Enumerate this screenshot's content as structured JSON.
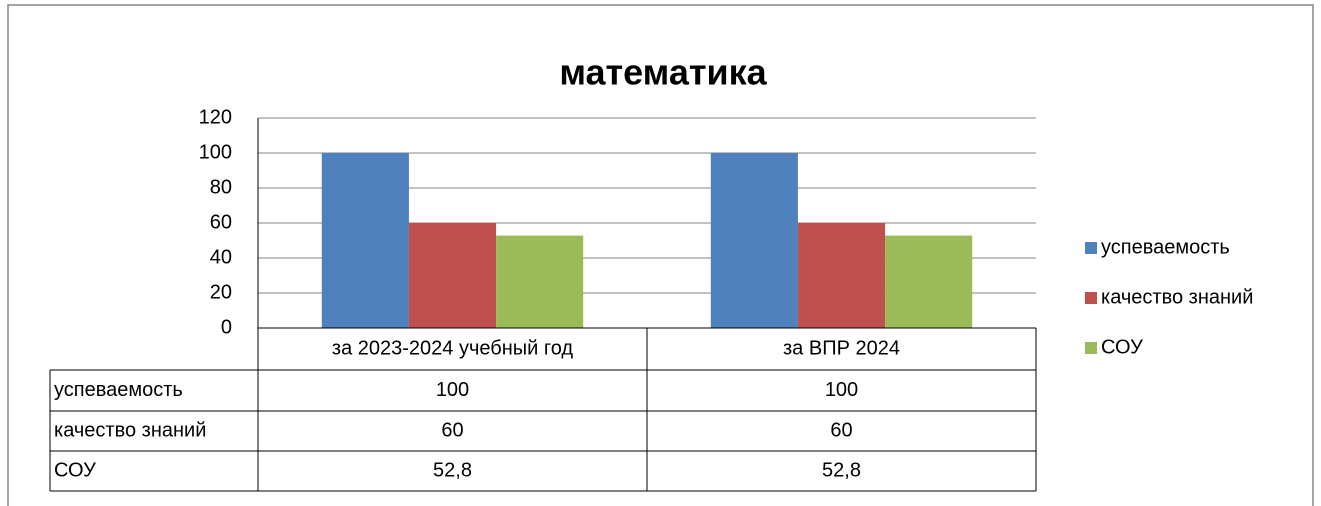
{
  "chart_data": {
    "type": "bar",
    "title": "математика",
    "categories": [
      "за 2023-2024 учебный год",
      "за ВПР 2024"
    ],
    "series": [
      {
        "name": "успеваемость",
        "color": "#4f81bd",
        "values": [
          100,
          100
        ]
      },
      {
        "name": "качество знаний",
        "color": "#c0504d",
        "values": [
          60,
          60
        ]
      },
      {
        "name": "СОУ",
        "color": "#9bbb59",
        "values": [
          52.8,
          52.8
        ],
        "value_labels": [
          "52,8",
          "52,8"
        ]
      }
    ],
    "ylim": [
      0,
      120
    ],
    "yticks": [
      0,
      20,
      40,
      60,
      80,
      100,
      120
    ],
    "grid": true,
    "legend": "right",
    "data_table": true
  }
}
